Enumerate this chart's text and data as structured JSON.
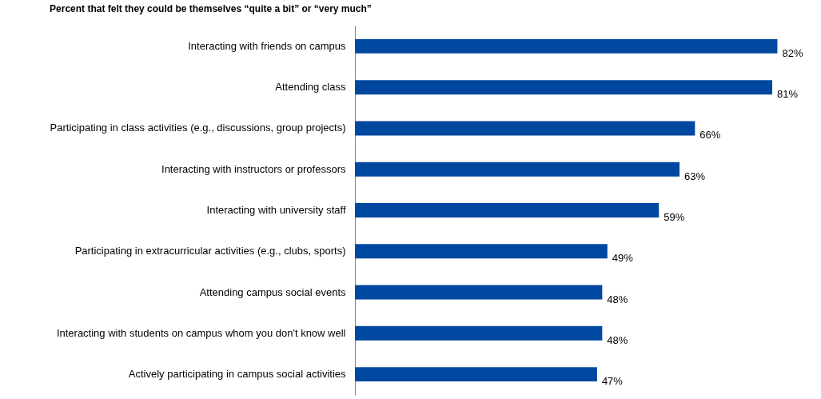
{
  "chart_data": {
    "type": "bar",
    "orientation": "horizontal",
    "title": "Percent that felt they could be themselves “quite a bit” or “very much”",
    "categories": [
      "Interacting with friends on campus",
      "Attending class",
      "Participating in class activities (e.g., discussions, group projects)",
      "Interacting with instructors or professors",
      "Interacting with university staff",
      "Participating in extracurricular activities (e.g., clubs, sports)",
      "Attending campus social events",
      "Interacting with students on campus whom you don't know well",
      "Actively participating in campus social activities"
    ],
    "values": [
      82,
      81,
      66,
      63,
      59,
      49,
      48,
      48,
      47
    ],
    "value_labels": [
      "82%",
      "81%",
      "66%",
      "63%",
      "59%",
      "49%",
      "48%",
      "48%",
      "47%"
    ],
    "color": "#0047a0"
  }
}
